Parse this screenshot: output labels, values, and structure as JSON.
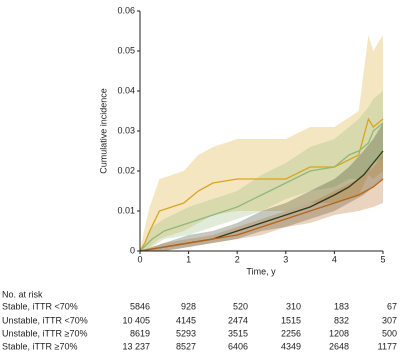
{
  "chart_data": {
    "type": "line",
    "y_label": "Cumulative incidence",
    "x_label": "Time, y",
    "xlim": [
      0,
      5
    ],
    "xticks": [
      0,
      1,
      2,
      3,
      4,
      5
    ],
    "ylim": [
      0,
      0.06
    ],
    "yticks": [
      0,
      0.01,
      0.02,
      0.03,
      0.04,
      0.05,
      0.06
    ],
    "series": [
      {
        "color": "#d9a520",
        "x": [
          0,
          0.1,
          0.2,
          0.4,
          0.9,
          1.2,
          1.5,
          2,
          2.5,
          3,
          3.5,
          4,
          4.5,
          4.7,
          4.8,
          5
        ],
        "values": [
          0,
          0.002,
          0.005,
          0.01,
          0.012,
          0.015,
          0.017,
          0.018,
          0.018,
          0.018,
          0.021,
          0.021,
          0.024,
          0.033,
          0.031,
          0.033
        ],
        "lower": [
          0,
          0,
          0.001,
          0.003,
          0.005,
          0.007,
          0.009,
          0.01,
          0.01,
          0.01,
          0.012,
          0.012,
          0.014,
          0.019,
          0.018,
          0.02
        ],
        "upper": [
          0,
          0.006,
          0.011,
          0.018,
          0.02,
          0.024,
          0.026,
          0.028,
          0.028,
          0.028,
          0.031,
          0.031,
          0.035,
          0.054,
          0.05,
          0.054
        ]
      },
      {
        "color": "#8fb87a",
        "x": [
          0,
          0.25,
          0.5,
          1,
          1.5,
          2,
          2.5,
          3,
          3.5,
          4,
          4.3,
          4.5,
          4.7,
          4.8,
          5
        ],
        "values": [
          0,
          0.003,
          0.005,
          0.007,
          0.009,
          0.011,
          0.014,
          0.017,
          0.02,
          0.021,
          0.024,
          0.025,
          0.027,
          0.03,
          0.032
        ],
        "lower": [
          0,
          0.001,
          0.003,
          0.004,
          0.006,
          0.008,
          0.01,
          0.013,
          0.015,
          0.016,
          0.018,
          0.018,
          0.02,
          0.022,
          0.023
        ],
        "upper": [
          0,
          0.006,
          0.008,
          0.011,
          0.013,
          0.015,
          0.019,
          0.022,
          0.026,
          0.028,
          0.031,
          0.033,
          0.036,
          0.038,
          0.04
        ]
      },
      {
        "color": "#2b3b1e",
        "x": [
          0,
          0.5,
          1,
          1.5,
          2,
          2.5,
          3,
          3.5,
          4,
          4.3,
          4.6,
          4.8,
          5
        ],
        "values": [
          0,
          0.001,
          0.002,
          0.003,
          0.005,
          0.007,
          0.009,
          0.011,
          0.014,
          0.016,
          0.019,
          0.022,
          0.025
        ],
        "lower": [
          0,
          0,
          0.001,
          0.002,
          0.003,
          0.005,
          0.006,
          0.008,
          0.01,
          0.012,
          0.014,
          0.016,
          0.018
        ],
        "upper": [
          0,
          0.002,
          0.004,
          0.005,
          0.007,
          0.01,
          0.012,
          0.015,
          0.018,
          0.021,
          0.025,
          0.028,
          0.032
        ]
      },
      {
        "color": "#b5651d",
        "x": [
          0,
          0.5,
          1,
          1.5,
          2,
          2.5,
          3,
          3.5,
          4,
          4.5,
          4.8,
          5
        ],
        "values": [
          0,
          0.001,
          0.002,
          0.003,
          0.004,
          0.006,
          0.008,
          0.01,
          0.012,
          0.014,
          0.016,
          0.018
        ],
        "lower": [
          0,
          0,
          0.001,
          0.002,
          0.003,
          0.004,
          0.006,
          0.007,
          0.009,
          0.01,
          0.011,
          0.012
        ],
        "upper": [
          0,
          0.002,
          0.003,
          0.004,
          0.006,
          0.008,
          0.01,
          0.012,
          0.015,
          0.018,
          0.021,
          0.024
        ]
      }
    ]
  },
  "risk_table": {
    "title": "No. at risk",
    "rows": [
      {
        "label": "Stable, iTTR <70%",
        "values": [
          "5846",
          "928",
          "520",
          "310",
          "183",
          "67"
        ]
      },
      {
        "label": "Unstable, iTTR <70%",
        "values": [
          "10 405",
          "4145",
          "2474",
          "1515",
          "832",
          "307"
        ]
      },
      {
        "label": "Unstable, iTTR ≥70%",
        "values": [
          "8619",
          "5293",
          "3515",
          "2256",
          "1208",
          "500"
        ]
      },
      {
        "label": "Stable, iTTR ≥70%",
        "values": [
          "13 237",
          "8527",
          "6406",
          "4349",
          "2648",
          "1177"
        ]
      }
    ]
  }
}
